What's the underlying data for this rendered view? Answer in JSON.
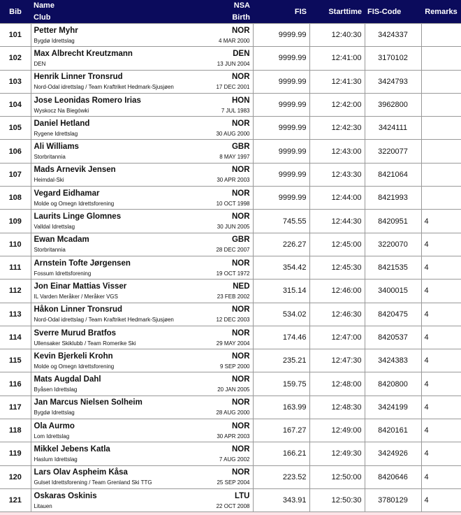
{
  "header": {
    "bib": "Bib",
    "name": "Name",
    "club": "Club",
    "nsa": "NSA",
    "birth": "Birth",
    "fis": "FIS",
    "starttime": "Starttime",
    "fis_code": "FIS-Code",
    "remarks": "Remarks"
  },
  "rows": [
    {
      "bib": "101",
      "name": "Petter Myhr",
      "club": "Bygdø Idrettslag",
      "nsa": "NOR",
      "birth": "4 MAR 2000",
      "fis": "9999.99",
      "start": "12:40:30",
      "code": "3424337",
      "remarks": ""
    },
    {
      "bib": "102",
      "name": "Max Albrecht Kreutzmann",
      "club": "DEN",
      "nsa": "DEN",
      "birth": "13 JUN 2004",
      "fis": "9999.99",
      "start": "12:41:00",
      "code": "3170102",
      "remarks": ""
    },
    {
      "bib": "103",
      "name": "Henrik Linner Tronsrud",
      "club": "Nord-Odal idrettslag  / Team Kraftriket Hedmark-Sjusjøen",
      "nsa": "NOR",
      "birth": "17 DEC 2001",
      "fis": "9999.99",
      "start": "12:41:30",
      "code": "3424793",
      "remarks": ""
    },
    {
      "bib": "104",
      "name": "Jose Leonidas Romero Irias",
      "club": "Wyskocz Na Biegówki",
      "nsa": "HON",
      "birth": "7 JUL 1983",
      "fis": "9999.99",
      "start": "12:42:00",
      "code": "3962800",
      "remarks": ""
    },
    {
      "bib": "105",
      "name": "Daniel Hetland",
      "club": "Rygene Idrettslag",
      "nsa": "NOR",
      "birth": "30 AUG 2000",
      "fis": "9999.99",
      "start": "12:42:30",
      "code": "3424111",
      "remarks": ""
    },
    {
      "bib": "106",
      "name": "Ali Williams",
      "club": "Storbritannia",
      "nsa": "GBR",
      "birth": "8 MAY 1997",
      "fis": "9999.99",
      "start": "12:43:00",
      "code": "3220077",
      "remarks": ""
    },
    {
      "bib": "107",
      "name": "Mads Arnevik Jensen",
      "club": "Heimdal-Ski",
      "nsa": "NOR",
      "birth": "30 APR 2003",
      "fis": "9999.99",
      "start": "12:43:30",
      "code": "8421064",
      "remarks": ""
    },
    {
      "bib": "108",
      "name": "Vegard Eidhamar",
      "club": "Molde og Omegn Idrettsforening",
      "nsa": "NOR",
      "birth": "10 OCT 1998",
      "fis": "9999.99",
      "start": "12:44:00",
      "code": "8421993",
      "remarks": ""
    },
    {
      "bib": "109",
      "name": "Laurits Linge Glomnes",
      "club": "Valldal Idrettslag",
      "nsa": "NOR",
      "birth": "30 JUN 2005",
      "fis": "745.55",
      "start": "12:44:30",
      "code": "8420951",
      "remarks": "4"
    },
    {
      "bib": "110",
      "name": "Ewan Mcadam",
      "club": "Storbritannia",
      "nsa": "GBR",
      "birth": "28 DEC 2007",
      "fis": "226.27",
      "start": "12:45:00",
      "code": "3220070",
      "remarks": "4"
    },
    {
      "bib": "111",
      "name": "Arnstein Tofte Jørgensen",
      "club": "Fossum Idrettsforening",
      "nsa": "NOR",
      "birth": "19 OCT 1972",
      "fis": "354.42",
      "start": "12:45:30",
      "code": "8421535",
      "remarks": "4"
    },
    {
      "bib": "112",
      "name": "Jon Einar Mattias Visser",
      "club": "IL Varden Meråker  / Meråker VGS",
      "nsa": "NED",
      "birth": "23 FEB 2002",
      "fis": "315.14",
      "start": "12:46:00",
      "code": "3400015",
      "remarks": "4"
    },
    {
      "bib": "113",
      "name": "Håkon Linner Tronsrud",
      "club": "Nord-Odal idrettslag  / Team Kraftriket Hedmark-Sjusjøen",
      "nsa": "NOR",
      "birth": "12 DEC 2003",
      "fis": "534.02",
      "start": "12:46:30",
      "code": "8420475",
      "remarks": "4"
    },
    {
      "bib": "114",
      "name": "Sverre Murud Bratfos",
      "club": "Ullensaker Skiklubb  / Team Romerike Ski",
      "nsa": "NOR",
      "birth": "29 MAY 2004",
      "fis": "174.46",
      "start": "12:47:00",
      "code": "8420537",
      "remarks": "4"
    },
    {
      "bib": "115",
      "name": "Kevin Bjerkeli Krohn",
      "club": "Molde og Omegn Idrettsforening",
      "nsa": "NOR",
      "birth": "9 SEP 2000",
      "fis": "235.21",
      "start": "12:47:30",
      "code": "3424383",
      "remarks": "4"
    },
    {
      "bib": "116",
      "name": "Mats Augdal Dahl",
      "club": "Byåsen Idrettslag",
      "nsa": "NOR",
      "birth": "20 JAN 2005",
      "fis": "159.75",
      "start": "12:48:00",
      "code": "8420800",
      "remarks": "4"
    },
    {
      "bib": "117",
      "name": "Jan Marcus Nielsen Solheim",
      "club": "Bygdø Idrettslag",
      "nsa": "NOR",
      "birth": "28 AUG 2000",
      "fis": "163.99",
      "start": "12:48:30",
      "code": "3424199",
      "remarks": "4"
    },
    {
      "bib": "118",
      "name": "Ola Aurmo",
      "club": "Lom Idrettslag",
      "nsa": "NOR",
      "birth": "30 APR 2003",
      "fis": "167.27",
      "start": "12:49:00",
      "code": "8420161",
      "remarks": "4"
    },
    {
      "bib": "119",
      "name": "Mikkel Jebens Katla",
      "club": "Haslum Idrettslag",
      "nsa": "NOR",
      "birth": "7 AUG 2002",
      "fis": "166.21",
      "start": "12:49:30",
      "code": "3424926",
      "remarks": "4"
    },
    {
      "bib": "120",
      "name": "Lars Olav Aspheim Kåsa",
      "club": "Gulset Idrettsforening  / Team Grenland Ski TTG",
      "nsa": "NOR",
      "birth": "25 SEP 2004",
      "fis": "223.52",
      "start": "12:50:00",
      "code": "8420646",
      "remarks": "4"
    },
    {
      "bib": "121",
      "name": "Oskaras Oskinis",
      "club": "Litauen",
      "nsa": "LTU",
      "birth": "22 OCT 2008",
      "fis": "343.91",
      "start": "12:50:30",
      "code": "3780129",
      "remarks": "4"
    }
  ]
}
